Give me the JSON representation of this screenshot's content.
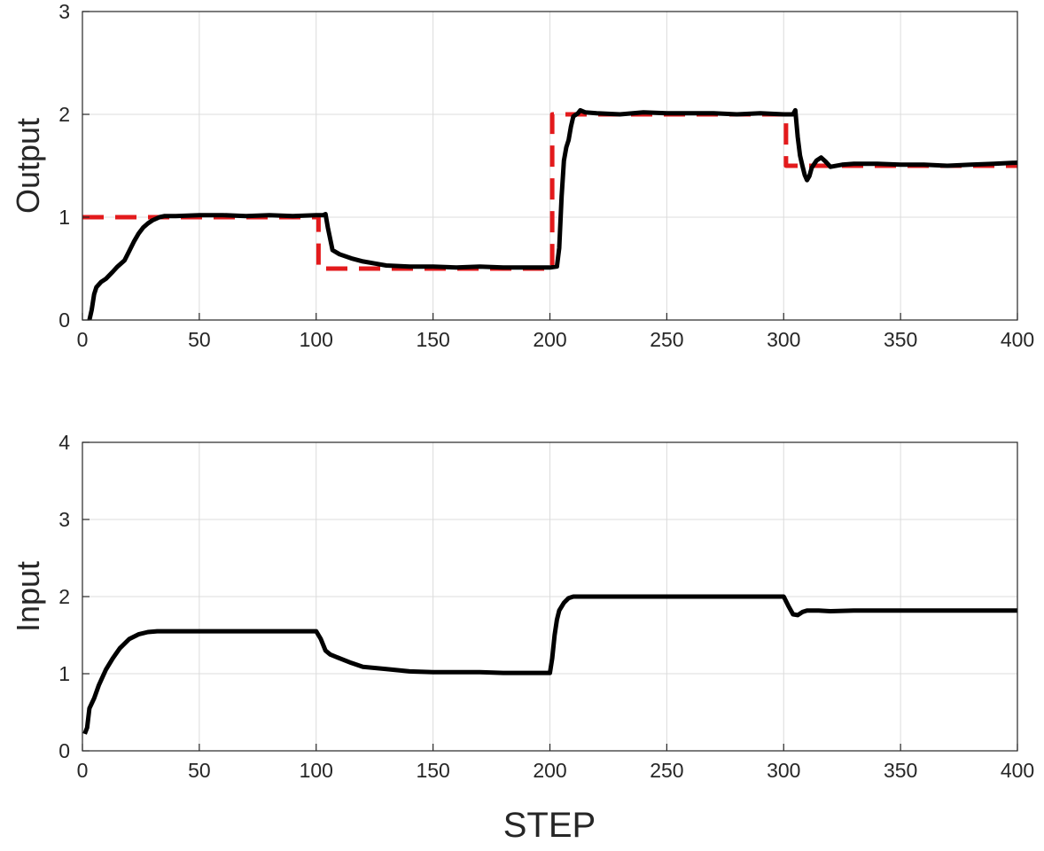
{
  "chart_data": [
    {
      "type": "line",
      "title": "",
      "xlabel": "",
      "ylabel": "Output",
      "xlim": [
        0,
        400
      ],
      "ylim": [
        0,
        3
      ],
      "xticks": [
        "0",
        "50",
        "100",
        "150",
        "200",
        "250",
        "300",
        "350",
        "400"
      ],
      "yticks": [
        "0",
        "1",
        "2",
        "3"
      ],
      "grid": true,
      "series": [
        {
          "color": "#e31a1c",
          "style": "dashed",
          "x": [
            0,
            101,
            101,
            201,
            201,
            301,
            301,
            400
          ],
          "y": [
            1.0,
            1.0,
            0.5,
            0.5,
            2.0,
            2.0,
            1.5,
            1.5
          ]
        },
        {
          "color": "#000000",
          "style": "solid",
          "x": [
            3,
            4,
            5,
            6,
            8,
            10,
            13,
            15,
            18,
            20,
            22,
            24,
            26,
            28,
            30,
            33,
            35,
            40,
            50,
            60,
            70,
            80,
            90,
            100,
            103,
            104,
            105,
            107,
            110,
            115,
            120,
            125,
            130,
            140,
            150,
            160,
            170,
            180,
            190,
            200,
            203,
            204,
            205,
            206,
            207,
            208,
            209,
            210,
            212,
            213,
            215,
            220,
            230,
            240,
            250,
            260,
            270,
            280,
            290,
            300,
            304,
            305,
            306,
            307,
            308,
            309,
            310,
            311,
            312,
            314,
            316,
            318,
            320,
            325,
            330,
            340,
            350,
            360,
            370,
            380,
            390,
            400
          ],
          "y": [
            0.0,
            0.1,
            0.25,
            0.32,
            0.37,
            0.4,
            0.47,
            0.52,
            0.58,
            0.67,
            0.76,
            0.84,
            0.9,
            0.94,
            0.97,
            1.0,
            1.01,
            1.01,
            1.02,
            1.02,
            1.01,
            1.02,
            1.01,
            1.02,
            1.02,
            1.03,
            0.9,
            0.68,
            0.64,
            0.6,
            0.57,
            0.55,
            0.53,
            0.52,
            0.52,
            0.51,
            0.52,
            0.51,
            0.51,
            0.51,
            0.52,
            0.7,
            1.2,
            1.55,
            1.68,
            1.75,
            1.88,
            1.98,
            2.01,
            2.04,
            2.02,
            2.01,
            2.0,
            2.02,
            2.01,
            2.01,
            2.01,
            2.0,
            2.01,
            2.0,
            2.0,
            2.04,
            1.78,
            1.6,
            1.5,
            1.41,
            1.36,
            1.4,
            1.48,
            1.55,
            1.58,
            1.54,
            1.49,
            1.51,
            1.52,
            1.52,
            1.51,
            1.51,
            1.5,
            1.51,
            1.52,
            1.53
          ]
        }
      ]
    },
    {
      "type": "line",
      "title": "",
      "xlabel": "STEP",
      "ylabel": "Input",
      "xlim": [
        0,
        400
      ],
      "ylim": [
        0,
        4
      ],
      "xticks": [
        "0",
        "50",
        "100",
        "150",
        "200",
        "250",
        "300",
        "350",
        "400"
      ],
      "yticks": [
        "0",
        "1",
        "2",
        "3",
        "4"
      ],
      "grid": true,
      "series": [
        {
          "color": "#000000",
          "style": "solid",
          "x": [
            1,
            2,
            3,
            5,
            7,
            10,
            13,
            16,
            20,
            24,
            28,
            32,
            40,
            50,
            60,
            70,
            80,
            90,
            100,
            102,
            104,
            106,
            110,
            115,
            120,
            130,
            140,
            150,
            160,
            170,
            180,
            190,
            200,
            201,
            202,
            203,
            204,
            206,
            208,
            210,
            215,
            220,
            230,
            240,
            250,
            260,
            270,
            280,
            290,
            300,
            302,
            304,
            306,
            308,
            310,
            315,
            320,
            330,
            350,
            370,
            390,
            400
          ],
          "y": [
            0.22,
            0.3,
            0.55,
            0.68,
            0.85,
            1.05,
            1.2,
            1.33,
            1.45,
            1.51,
            1.54,
            1.55,
            1.55,
            1.55,
            1.55,
            1.55,
            1.55,
            1.55,
            1.55,
            1.45,
            1.3,
            1.25,
            1.2,
            1.14,
            1.09,
            1.06,
            1.03,
            1.02,
            1.02,
            1.02,
            1.01,
            1.01,
            1.01,
            1.2,
            1.5,
            1.7,
            1.82,
            1.92,
            1.98,
            2.0,
            2.0,
            2.0,
            2.0,
            2.0,
            2.0,
            2.0,
            2.0,
            2.0,
            2.0,
            2.0,
            1.88,
            1.77,
            1.76,
            1.8,
            1.82,
            1.82,
            1.81,
            1.82,
            1.82,
            1.82,
            1.82,
            1.82
          ]
        }
      ]
    }
  ]
}
